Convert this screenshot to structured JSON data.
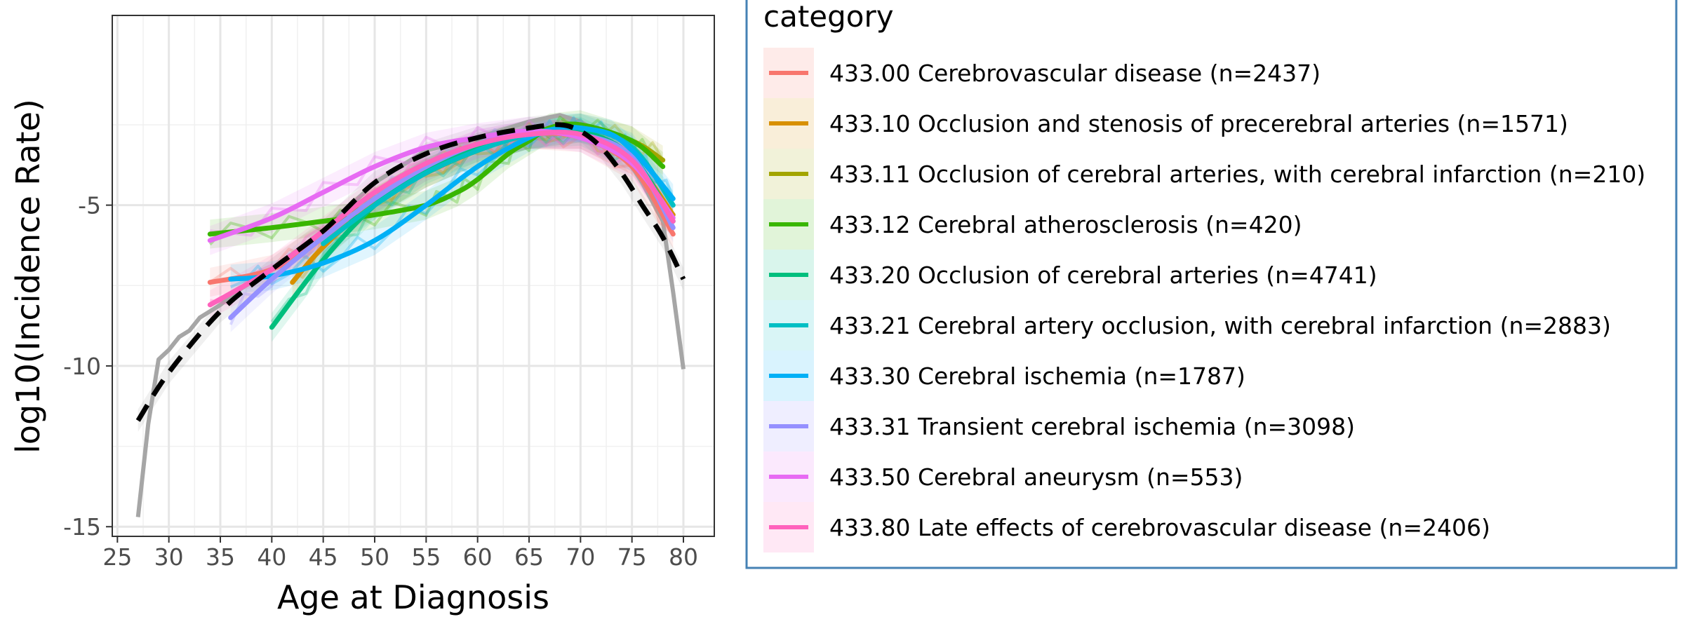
{
  "chart_data": {
    "type": "line",
    "title": "",
    "xlabel": "Age at Diagnosis",
    "ylabel": "log10(Incidence Rate)",
    "xlim": [
      24.5,
      83
    ],
    "ylim": [
      -15.3,
      0.9
    ],
    "x_ticks": [
      25,
      30,
      35,
      40,
      45,
      50,
      55,
      60,
      65,
      70,
      75,
      80
    ],
    "y_ticks": [
      -5,
      -10,
      -15
    ],
    "grid": true,
    "legend": {
      "title": "category",
      "position": "right"
    },
    "overall": {
      "raw_x": [
        27,
        28,
        29,
        30,
        31,
        32,
        33,
        34,
        35,
        37,
        40,
        45,
        50,
        55,
        60,
        65,
        68,
        70,
        72,
        74,
        76,
        78,
        79,
        80
      ],
      "raw_y": [
        -14.7,
        -11.8,
        -9.8,
        -9.5,
        -9.1,
        -8.9,
        -8.5,
        -8.3,
        -8.1,
        -7.6,
        -7.0,
        -5.8,
        -4.3,
        -3.3,
        -2.9,
        -2.4,
        -2.2,
        -2.4,
        -2.8,
        -3.3,
        -4.3,
        -5.5,
        -7.7,
        -10.1
      ],
      "trend_x": [
        27,
        30,
        35,
        40,
        45,
        50,
        55,
        60,
        65,
        68,
        70,
        72,
        74,
        76,
        78,
        80
      ],
      "trend_y": [
        -11.7,
        -10.2,
        -8.3,
        -7.0,
        -5.8,
        -4.3,
        -3.4,
        -2.9,
        -2.6,
        -2.5,
        -2.7,
        -3.2,
        -4.0,
        -5.0,
        -6.0,
        -7.3
      ]
    },
    "series": [
      {
        "name": "433.00 Cerebrovascular disease (n=2437)",
        "color": "#F8766D",
        "x": [
          34,
          40,
          45,
          50,
          55,
          60,
          65,
          70,
          75,
          79
        ],
        "y": [
          -7.4,
          -7.0,
          -6.0,
          -4.8,
          -3.8,
          -3.2,
          -2.8,
          -2.9,
          -3.8,
          -5.9
        ]
      },
      {
        "name": "433.10 Occlusion and stenosis of precerebral arteries (n=1571)",
        "color": "#D89000",
        "x": [
          42,
          45,
          50,
          55,
          60,
          65,
          70,
          75,
          79
        ],
        "y": [
          -7.4,
          -6.3,
          -4.9,
          -4.0,
          -3.3,
          -2.8,
          -2.8,
          -3.6,
          -5.3
        ]
      },
      {
        "name": "433.11 Occlusion of cerebral arteries, with cerebral infarction (n=210)",
        "color": "#A3A500",
        "x": [
          48,
          50,
          55,
          60,
          65,
          70,
          75,
          78
        ],
        "y": [
          -5.2,
          -4.9,
          -4.0,
          -3.3,
          -2.8,
          -2.6,
          -3.0,
          -3.6
        ]
      },
      {
        "name": "433.12 Cerebral atherosclerosis (n=420)",
        "color": "#39B600",
        "x": [
          34,
          40,
          45,
          50,
          55,
          58,
          60,
          63,
          65,
          67,
          70,
          75,
          78
        ],
        "y": [
          -5.9,
          -5.7,
          -5.5,
          -5.3,
          -5.0,
          -4.6,
          -4.2,
          -3.4,
          -3.0,
          -2.6,
          -2.5,
          -3.0,
          -3.8
        ]
      },
      {
        "name": "433.20 Occlusion of cerebral arteries (n=4741)",
        "color": "#00BF7D",
        "x": [
          40,
          45,
          50,
          55,
          60,
          65,
          70,
          75,
          79
        ],
        "y": [
          -8.8,
          -6.7,
          -5.0,
          -3.9,
          -3.2,
          -2.8,
          -2.7,
          -3.5,
          -5.5
        ]
      },
      {
        "name": "433.21 Cerebral artery occlusion, with cerebral infarction (n=2883)",
        "color": "#00BFC4",
        "x": [
          45,
          50,
          55,
          60,
          65,
          70,
          75,
          79
        ],
        "y": [
          -6.2,
          -5.0,
          -4.0,
          -3.3,
          -2.8,
          -2.6,
          -3.2,
          -5.0
        ]
      },
      {
        "name": "433.30 Cerebral ischemia (n=1787)",
        "color": "#00B0F6",
        "x": [
          36,
          40,
          45,
          50,
          55,
          60,
          65,
          68,
          70,
          73,
          75,
          77,
          79
        ],
        "y": [
          -7.3,
          -7.2,
          -6.8,
          -6.1,
          -5.0,
          -3.8,
          -2.9,
          -2.6,
          -2.6,
          -2.8,
          -3.3,
          -4.0,
          -4.8
        ]
      },
      {
        "name": "433.31 Transient cerebral ischemia (n=3098)",
        "color": "#9590FF",
        "x": [
          36,
          40,
          45,
          50,
          55,
          60,
          65,
          70,
          75,
          79
        ],
        "y": [
          -8.5,
          -7.3,
          -6.0,
          -4.8,
          -3.8,
          -3.1,
          -2.8,
          -2.8,
          -3.5,
          -5.7
        ]
      },
      {
        "name": "433.50 Cerebral aneurysm (n=553)",
        "color": "#E76BF3",
        "x": [
          34,
          40,
          45,
          50,
          55,
          60,
          65,
          70,
          75,
          79
        ],
        "y": [
          -6.1,
          -5.4,
          -4.6,
          -3.8,
          -3.2,
          -2.9,
          -2.7,
          -2.9,
          -3.7,
          -5.4
        ]
      },
      {
        "name": "433.80 Late effects of cerebrovascular disease (n=2406)",
        "color": "#FF62BC",
        "x": [
          34,
          40,
          45,
          50,
          55,
          60,
          65,
          70,
          75,
          79
        ],
        "y": [
          -8.1,
          -7.0,
          -5.8,
          -4.6,
          -3.7,
          -3.1,
          -2.8,
          -2.8,
          -3.6,
          -5.5
        ]
      }
    ]
  }
}
